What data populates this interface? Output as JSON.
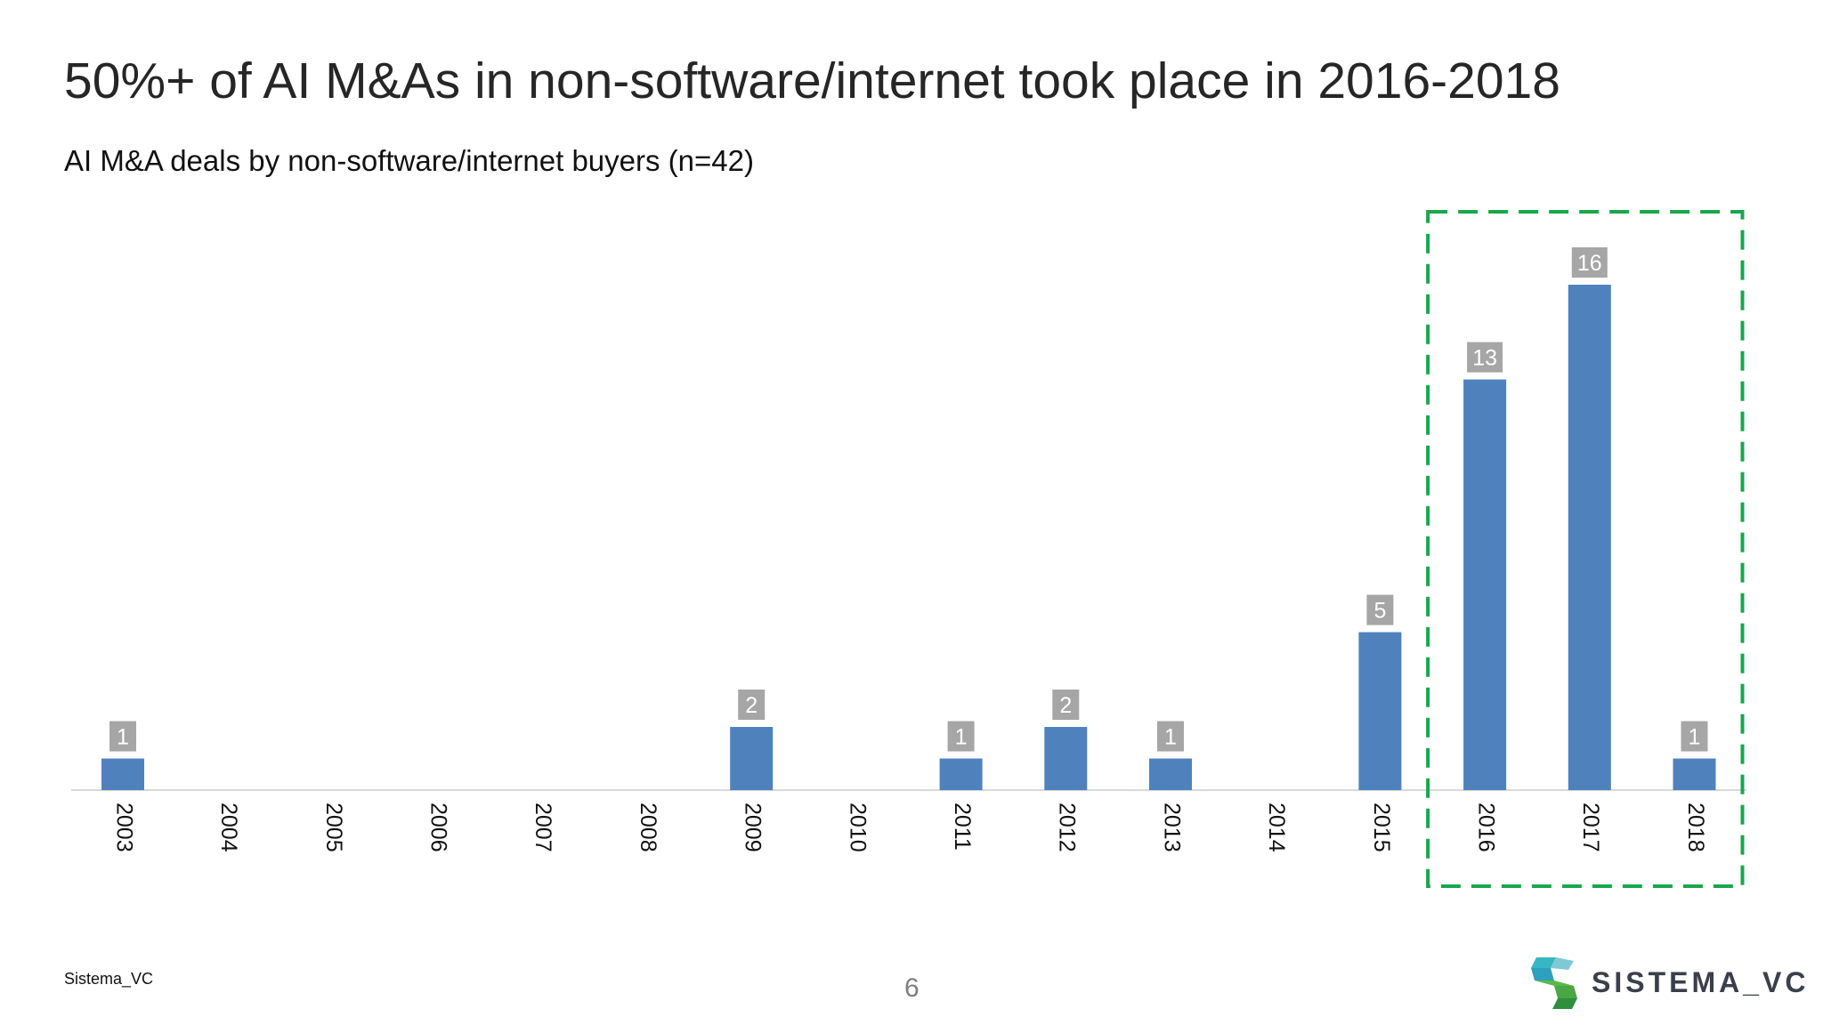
{
  "slide": {
    "title": "50%+ of AI M&As in non-software/internet took place in 2016-2018",
    "subtitle": "AI M&A deals by non-software/internet buyers (n=42)",
    "footer_left": "Sistema_VC",
    "page_number": "6",
    "logo_text": "SISTEMA_VC"
  },
  "chart_data": {
    "type": "bar",
    "title": "",
    "xlabel": "",
    "ylabel": "",
    "categories": [
      "2003",
      "2004",
      "2005",
      "2006",
      "2007",
      "2008",
      "2009",
      "2010",
      "2011",
      "2012",
      "2013",
      "2014",
      "2015",
      "2016",
      "2017",
      "2018"
    ],
    "values": [
      1,
      null,
      null,
      null,
      null,
      null,
      2,
      null,
      1,
      2,
      1,
      null,
      5,
      13,
      16,
      1
    ],
    "ylim": [
      0,
      16
    ],
    "grid": false,
    "data_labels": true,
    "highlight": {
      "from": "2016",
      "to": "2018",
      "style": "dashed-box"
    },
    "colors": {
      "bar": "#4f81bd",
      "label_bg": "#a6a6a6",
      "highlight": "#19a74b",
      "axis": "#d9d9d9"
    }
  }
}
